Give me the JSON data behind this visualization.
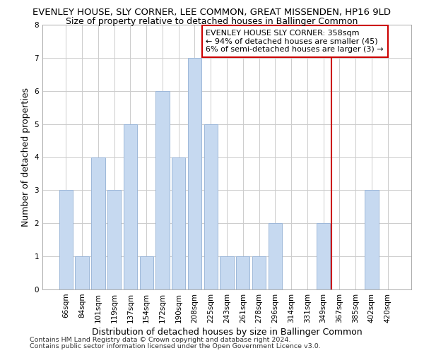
{
  "title": "EVENLEY HOUSE, SLY CORNER, LEE COMMON, GREAT MISSENDEN, HP16 9LD",
  "subtitle": "Size of property relative to detached houses in Ballinger Common",
  "xlabel": "Distribution of detached houses by size in Ballinger Common",
  "ylabel": "Number of detached properties",
  "footnote1": "Contains HM Land Registry data © Crown copyright and database right 2024.",
  "footnote2": "Contains public sector information licensed under the Open Government Licence v3.0.",
  "categories": [
    "66sqm",
    "84sqm",
    "101sqm",
    "119sqm",
    "137sqm",
    "154sqm",
    "172sqm",
    "190sqm",
    "208sqm",
    "225sqm",
    "243sqm",
    "261sqm",
    "278sqm",
    "296sqm",
    "314sqm",
    "331sqm",
    "349sqm",
    "367sqm",
    "385sqm",
    "402sqm",
    "420sqm"
  ],
  "values": [
    3,
    1,
    4,
    3,
    5,
    1,
    6,
    4,
    7,
    5,
    1,
    1,
    1,
    2,
    0,
    0,
    2,
    0,
    0,
    3,
    0
  ],
  "bar_color": "#c6d9f0",
  "bar_edge_color": "#9db8d9",
  "grid_color": "#cccccc",
  "vline_color": "#cc0000",
  "annotation_text": "EVENLEY HOUSE SLY CORNER: 358sqm\n← 94% of detached houses are smaller (45)\n6% of semi-detached houses are larger (3) →",
  "annotation_box_color": "#cc0000",
  "ylim": [
    0,
    8
  ],
  "yticks": [
    0,
    1,
    2,
    3,
    4,
    5,
    6,
    7,
    8
  ],
  "title_fontsize": 9.5,
  "subtitle_fontsize": 9,
  "xlabel_fontsize": 9,
  "ylabel_fontsize": 9,
  "tick_fontsize": 7.5,
  "annotation_fontsize": 8,
  "footnote_fontsize": 6.8
}
